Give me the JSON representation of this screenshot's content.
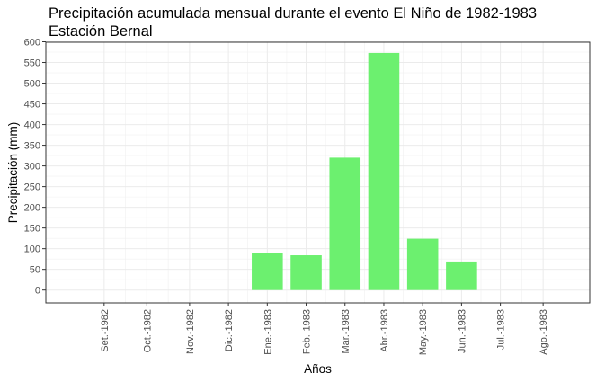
{
  "chart_data": {
    "type": "bar",
    "title": "Precipitación acumulada mensual durante el evento El Niño de 1982-1983",
    "subtitle": "Estación Bernal",
    "xlabel": "Años",
    "ylabel": "Precipitación (mm)",
    "ylim": [
      0,
      600
    ],
    "yticks": [
      0,
      50,
      100,
      150,
      200,
      250,
      300,
      350,
      400,
      450,
      500,
      550,
      600
    ],
    "categories": [
      "Set.-1982",
      "Oct.-1982",
      "Nov.-1982",
      "Dic.-1982",
      "Ene.-1983",
      "Feb.-1983",
      "Mar.-1983",
      "Abr.-1983",
      "May.-1983",
      "Jun.-1983",
      "Jul.-1983",
      "Ago.-1983"
    ],
    "values": [
      0,
      0,
      0,
      0,
      89,
      84,
      320,
      573,
      124,
      69,
      0,
      0
    ],
    "x_positions": [
      2.0,
      3.1,
      4.2,
      5.2,
      6.2,
      7.2,
      8.2,
      9.2,
      10.2,
      11.2,
      12.2,
      13.3
    ],
    "bar_color": "#6cf06f",
    "grid": true,
    "legend": "none"
  }
}
